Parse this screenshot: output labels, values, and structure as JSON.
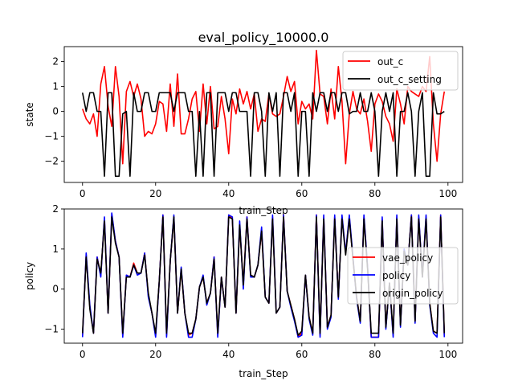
{
  "figure": {
    "title": "eval_policy_10000.0"
  },
  "chart_data": [
    {
      "type": "line",
      "title": "eval_policy_10000.0",
      "xlabel": "train_Step",
      "ylabel": "state",
      "xlim": [
        -5,
        104
      ],
      "ylim": [
        -2.85,
        2.6
      ],
      "xticks": [
        0,
        20,
        40,
        60,
        80,
        100
      ],
      "yticks": [
        -2,
        -1,
        0,
        1,
        2
      ],
      "grid": false,
      "legend_position": "top-right",
      "x": [
        0,
        1,
        2,
        3,
        4,
        5,
        6,
        7,
        8,
        9,
        10,
        11,
        12,
        13,
        14,
        15,
        16,
        17,
        18,
        19,
        20,
        21,
        22,
        23,
        24,
        25,
        26,
        27,
        28,
        29,
        30,
        31,
        32,
        33,
        34,
        35,
        36,
        37,
        38,
        39,
        40,
        41,
        42,
        43,
        44,
        45,
        46,
        47,
        48,
        49,
        50,
        51,
        52,
        53,
        54,
        55,
        56,
        57,
        58,
        59,
        60,
        61,
        62,
        63,
        64,
        65,
        66,
        67,
        68,
        69,
        70,
        71,
        72,
        73,
        74,
        75,
        76,
        77,
        78,
        79,
        80,
        81,
        82,
        83,
        84,
        85,
        86,
        87,
        88,
        89,
        90,
        91,
        92,
        93,
        94,
        95,
        96,
        97,
        98,
        99
      ],
      "series": [
        {
          "name": "out_c",
          "color": "#ff0000",
          "values": [
            0.1,
            -0.3,
            -0.5,
            -0.1,
            -1.0,
            1.1,
            1.8,
            0.2,
            -0.6,
            1.8,
            0.6,
            -2.1,
            0.8,
            1.2,
            0.6,
            1.1,
            0.5,
            -1.0,
            -0.8,
            -0.9,
            -0.5,
            0.4,
            0.3,
            -0.8,
            1.1,
            -0.6,
            1.5,
            -0.9,
            -0.9,
            -0.3,
            0.5,
            0.8,
            -0.8,
            1.1,
            -0.5,
            1.0,
            -0.7,
            -0.6,
            0.6,
            -0.3,
            -1.7,
            0.5,
            -0.1,
            0.9,
            0.3,
            0.8,
            0.1,
            0.7,
            -0.8,
            -0.3,
            -0.4,
            0.7,
            -0.1,
            -0.2,
            -0.1,
            0.6,
            1.4,
            0.8,
            1.2,
            -0.5,
            0.4,
            0.1,
            0.3,
            -0.3,
            2.45,
            0.7,
            0.6,
            -0.5,
            0.9,
            -0.3,
            1.8,
            0.4,
            -2.1,
            -0.1,
            0.8,
            0.1,
            -0.1,
            0.5,
            -0.4,
            -1.6,
            0.3,
            0.7,
            0.4,
            -0.2,
            -0.5,
            -1.2,
            0.9,
            0.3,
            -0.5,
            1.0,
            0.8,
            0.7,
            0.6,
            1.0,
            0.8,
            2.2,
            -0.5,
            -2.0,
            -0.1,
            0.8
          ]
        },
        {
          "name": "out_c_setting",
          "color": "#000000",
          "values": [
            0.75,
            0.0,
            0.75,
            0.75,
            0.0,
            0.0,
            -2.6,
            0.75,
            0.75,
            -2.6,
            -2.6,
            -0.1,
            0.0,
            -2.6,
            0.75,
            0.0,
            0.0,
            0.75,
            0.75,
            0.0,
            0.0,
            0.75,
            0.75,
            0.75,
            0.75,
            0.0,
            0.75,
            0.75,
            0.75,
            0.0,
            0.0,
            -2.6,
            0.0,
            -2.6,
            0.75,
            0.75,
            -2.6,
            0.75,
            0.75,
            0.75,
            0.0,
            0.75,
            0.75,
            0.0,
            0.0,
            0.0,
            -2.6,
            0.75,
            0.75,
            0.0,
            -2.6,
            0.75,
            0.0,
            0.75,
            -2.6,
            0.75,
            0.75,
            0.0,
            0.75,
            -2.6,
            0.0,
            0.0,
            -2.6,
            0.75,
            0.0,
            0.75,
            0.75,
            0.0,
            0.75,
            0.75,
            0.0,
            0.75,
            0.75,
            -0.1,
            0.0,
            0.0,
            0.75,
            0.0,
            0.0,
            0.75,
            0.0,
            -2.6,
            0.0,
            0.75,
            0.0,
            0.75,
            -2.6,
            0.0,
            0.0,
            0.75,
            0.0,
            -2.6,
            0.0,
            0.75,
            -2.6,
            -2.6,
            0.75,
            -0.1,
            -0.1,
            0.0
          ]
        }
      ]
    },
    {
      "type": "line",
      "title": "",
      "xlabel": "train_Step",
      "ylabel": "policy",
      "xlim": [
        -5,
        104
      ],
      "ylim": [
        -1.35,
        2.0
      ],
      "xticks": [
        0,
        20,
        40,
        60,
        80,
        100
      ],
      "yticks": [
        -1,
        0,
        1,
        2
      ],
      "grid": false,
      "legend_position": "center-right",
      "x": [
        0,
        1,
        2,
        3,
        4,
        5,
        6,
        7,
        8,
        9,
        10,
        11,
        12,
        13,
        14,
        15,
        16,
        17,
        18,
        19,
        20,
        21,
        22,
        23,
        24,
        25,
        26,
        27,
        28,
        29,
        30,
        31,
        32,
        33,
        34,
        35,
        36,
        37,
        38,
        39,
        40,
        41,
        42,
        43,
        44,
        45,
        46,
        47,
        48,
        49,
        50,
        51,
        52,
        53,
        54,
        55,
        56,
        57,
        58,
        59,
        60,
        61,
        62,
        63,
        64,
        65,
        66,
        67,
        68,
        69,
        70,
        71,
        72,
        73,
        74,
        75,
        76,
        77,
        78,
        79,
        80,
        81,
        82,
        83,
        84,
        85,
        86,
        87,
        88,
        89,
        90,
        91,
        92,
        93,
        94,
        95,
        96,
        97,
        98,
        99
      ],
      "series": [
        {
          "name": "vae_policy",
          "color": "#ff0000",
          "values": [
            -1.15,
            0.85,
            -0.45,
            -1.1,
            0.8,
            0.35,
            1.75,
            -0.6,
            1.85,
            1.2,
            0.8,
            -1.15,
            0.35,
            0.3,
            0.65,
            0.4,
            0.4,
            0.9,
            -0.15,
            -0.6,
            -1.15,
            0.2,
            1.85,
            -1.15,
            0.7,
            1.8,
            -0.6,
            0.5,
            -0.6,
            -1.15,
            -1.1,
            -0.75,
            0.05,
            0.3,
            -0.35,
            -0.1,
            0.8,
            -1.15,
            0.3,
            -0.45,
            1.85,
            1.75,
            -0.6,
            1.6,
            0.1,
            1.8,
            0.35,
            0.3,
            0.6,
            1.45,
            -0.2,
            -0.35,
            1.8,
            -0.6,
            -0.45,
            1.85,
            -0.05,
            -0.4,
            -0.75,
            -1.2,
            -1.1,
            0.35,
            -0.7,
            -1.1,
            1.85,
            -1.15,
            1.8,
            -0.95,
            -0.65,
            1.8,
            -0.2,
            1.8,
            0.9,
            1.8,
            0.75,
            -0.2,
            -0.8,
            1.8,
            0.55,
            -1.2,
            -1.2,
            -1.2,
            1.75,
            -0.95,
            0.15,
            -1.15,
            1.8,
            -0.9,
            0.95,
            0.6,
            1.85,
            -0.8,
            1.8,
            0.3,
            1.8,
            -0.35,
            -1.05,
            -1.1,
            1.85,
            -1.15
          ]
        },
        {
          "name": "policy",
          "color": "#0000ff",
          "values": [
            -1.2,
            0.9,
            -0.4,
            -1.1,
            0.8,
            0.3,
            1.8,
            -0.6,
            1.9,
            1.2,
            0.8,
            -1.2,
            0.35,
            0.3,
            0.6,
            0.35,
            0.4,
            0.9,
            -0.2,
            -0.6,
            -1.2,
            0.2,
            1.85,
            -1.2,
            0.7,
            1.85,
            -0.6,
            0.55,
            -0.6,
            -1.2,
            -1.2,
            -0.75,
            0.05,
            0.35,
            -0.4,
            -0.1,
            0.8,
            -1.2,
            0.3,
            -0.45,
            1.85,
            1.8,
            -0.6,
            1.7,
            0.0,
            1.8,
            0.3,
            0.3,
            0.6,
            1.55,
            -0.2,
            -0.35,
            1.85,
            -0.6,
            -0.45,
            1.85,
            -0.05,
            -0.45,
            -0.8,
            -1.2,
            -1.15,
            0.35,
            -0.75,
            -1.15,
            1.85,
            -1.2,
            1.85,
            -1.0,
            -0.7,
            1.85,
            -0.25,
            1.85,
            0.9,
            1.85,
            0.8,
            -0.25,
            -0.85,
            1.85,
            0.55,
            -1.2,
            -1.2,
            -1.2,
            1.8,
            -1.0,
            0.15,
            -1.2,
            1.85,
            -0.95,
            1.0,
            0.6,
            1.85,
            -0.85,
            1.85,
            0.3,
            1.85,
            -0.4,
            -1.1,
            -1.2,
            1.85,
            -1.2
          ]
        },
        {
          "name": "origin_policy",
          "color": "#000000",
          "values": [
            -1.1,
            0.8,
            -0.5,
            -1.1,
            0.75,
            0.4,
            1.7,
            -0.6,
            1.8,
            1.15,
            0.8,
            -1.1,
            0.3,
            0.3,
            0.6,
            0.4,
            0.4,
            0.85,
            -0.1,
            -0.6,
            -1.1,
            0.2,
            1.8,
            -1.1,
            0.7,
            1.8,
            -0.6,
            0.5,
            -0.6,
            -1.1,
            -1.1,
            -0.75,
            0.05,
            0.3,
            -0.35,
            -0.1,
            0.75,
            -1.1,
            0.3,
            -0.45,
            1.8,
            1.75,
            -0.6,
            1.6,
            0.1,
            1.75,
            0.35,
            0.3,
            0.6,
            1.45,
            -0.2,
            -0.35,
            1.75,
            -0.6,
            -0.45,
            1.8,
            -0.05,
            -0.4,
            -0.75,
            -1.15,
            -1.05,
            0.35,
            -0.7,
            -1.1,
            1.8,
            -1.1,
            1.75,
            -0.95,
            -0.65,
            1.75,
            -0.2,
            1.75,
            0.85,
            1.75,
            0.75,
            -0.2,
            -0.8,
            1.75,
            0.5,
            -1.1,
            -1.1,
            -1.1,
            1.7,
            -0.95,
            0.15,
            -1.1,
            1.75,
            -0.9,
            0.95,
            0.6,
            1.8,
            -0.8,
            1.75,
            0.3,
            1.75,
            -0.35,
            -1.05,
            -1.1,
            1.8,
            -1.1
          ]
        }
      ]
    }
  ]
}
